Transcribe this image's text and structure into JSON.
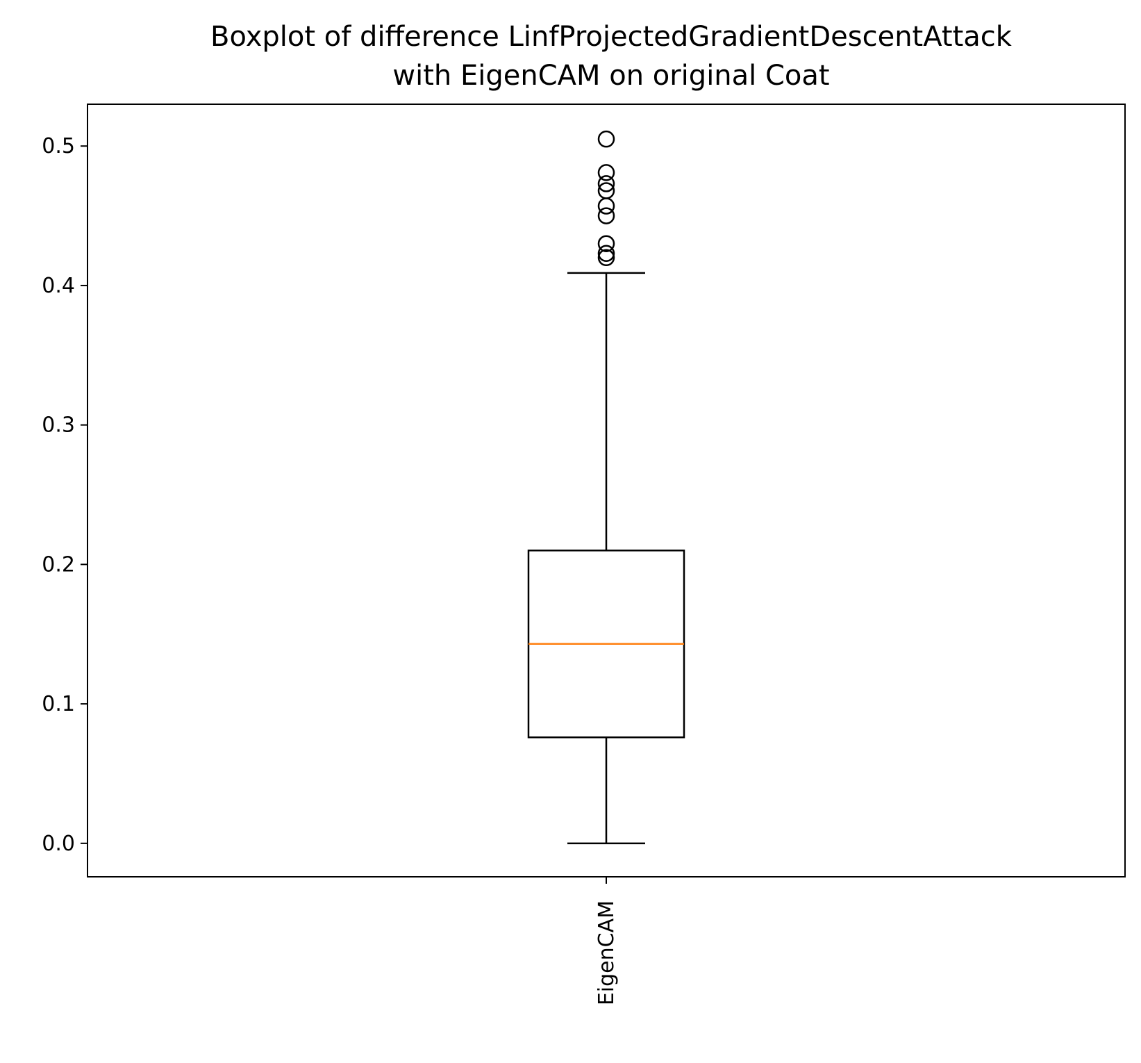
{
  "chart_data": {
    "type": "boxplot",
    "title_lines": [
      "Boxplot of difference LinfProjectedGradientDescentAttack",
      "with EigenCAM on original Coat"
    ],
    "xlabel": "",
    "ylabel": "",
    "categories": [
      "EigenCAM"
    ],
    "ylim": [
      -0.024,
      0.53
    ],
    "yticks": [
      {
        "value": 0.0,
        "label": "0.0"
      },
      {
        "value": 0.1,
        "label": "0.1"
      },
      {
        "value": 0.2,
        "label": "0.2"
      },
      {
        "value": 0.3,
        "label": "0.3"
      },
      {
        "value": 0.4,
        "label": "0.4"
      },
      {
        "value": 0.5,
        "label": "0.5"
      }
    ],
    "series": [
      {
        "category": "EigenCAM",
        "whisker_low": 0.0,
        "q1": 0.076,
        "median": 0.143,
        "q3": 0.21,
        "whisker_high": 0.409,
        "outliers": [
          0.505,
          0.481,
          0.473,
          0.468,
          0.457,
          0.45,
          0.43,
          0.423,
          0.42
        ]
      }
    ],
    "grid": false,
    "colors": {
      "box": "#000000",
      "median": "#ff7f0e",
      "outlier": "#000000"
    }
  }
}
